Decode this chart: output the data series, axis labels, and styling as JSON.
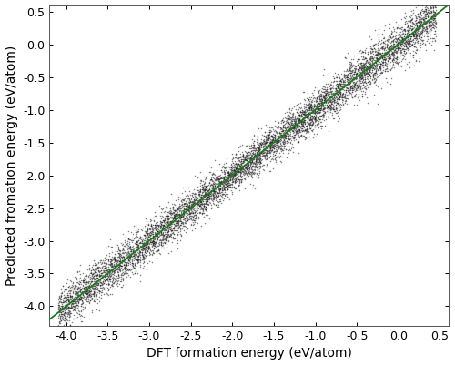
{
  "xlim": [
    -4.2,
    0.6
  ],
  "ylim": [
    -4.3,
    0.6
  ],
  "xticks": [
    -4.0,
    -3.5,
    -3.0,
    -2.5,
    -2.0,
    -1.5,
    -1.0,
    -0.5,
    0.0,
    0.5
  ],
  "yticks": [
    -4.0,
    -3.5,
    -3.0,
    -2.5,
    -2.0,
    -1.5,
    -1.0,
    -0.5,
    0.0,
    0.5
  ],
  "xlabel": "DFT formation energy (eV/atom)",
  "ylabel": "Predicted fromation energy (eV/atom)",
  "line_color": "#1a7a1a",
  "scatter_color": "#222222",
  "scatter_alpha": 0.55,
  "scatter_size": 1.2,
  "n_points": 8000,
  "seed": 99,
  "background_color": "#ffffff",
  "xlabel_fontsize": 10,
  "ylabel_fontsize": 10,
  "tick_fontsize": 9
}
